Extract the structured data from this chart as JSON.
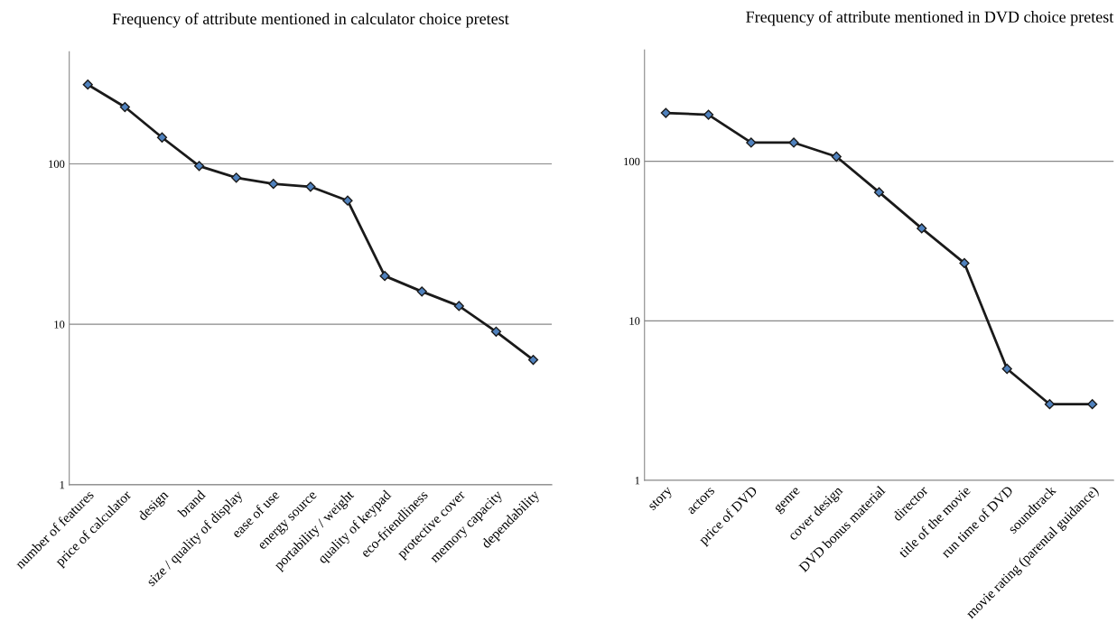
{
  "chart_data": [
    {
      "type": "line",
      "title": "Frequency of attribute mentioned in calculator choice pretest",
      "categories": [
        "number of features",
        "price of calculator",
        "design",
        "brand",
        "size / quality of display",
        "ease of use",
        "energy source",
        "portability / weight",
        "quality of keypad",
        "eco-friendliness",
        "protective cover",
        "memory capacity",
        "dependability"
      ],
      "series": [
        {
          "color": "#1a1a1a",
          "values": [
            312,
            226,
            146,
            97,
            82,
            75,
            72,
            59,
            20,
            16,
            13,
            9,
            6
          ]
        }
      ],
      "log": true,
      "ylim": [
        1,
        500
      ],
      "yticks": [
        1,
        10,
        100
      ],
      "grid": "y",
      "marker": "diamond",
      "line_style": "solid"
    },
    {
      "type": "line",
      "title": "Frequency of attribute mentioned in DVD choice pretest",
      "categories": [
        "story",
        "actors",
        "price of DVD",
        "genre",
        "cover design",
        "DVD bonus material",
        "director",
        "title of the movie",
        "run time of DVD",
        "soundtrack",
        "movie rating (parental guidance)"
      ],
      "series": [
        {
          "color": "#1a1a1a",
          "values": [
            201,
            196,
            131,
            131,
            107,
            64,
            38,
            23,
            5,
            3,
            3
          ]
        }
      ],
      "log": true,
      "ylim": [
        1,
        500
      ],
      "yticks": [
        1,
        10,
        100
      ],
      "grid": "y",
      "marker": "diamond",
      "line_style": "solid"
    }
  ]
}
